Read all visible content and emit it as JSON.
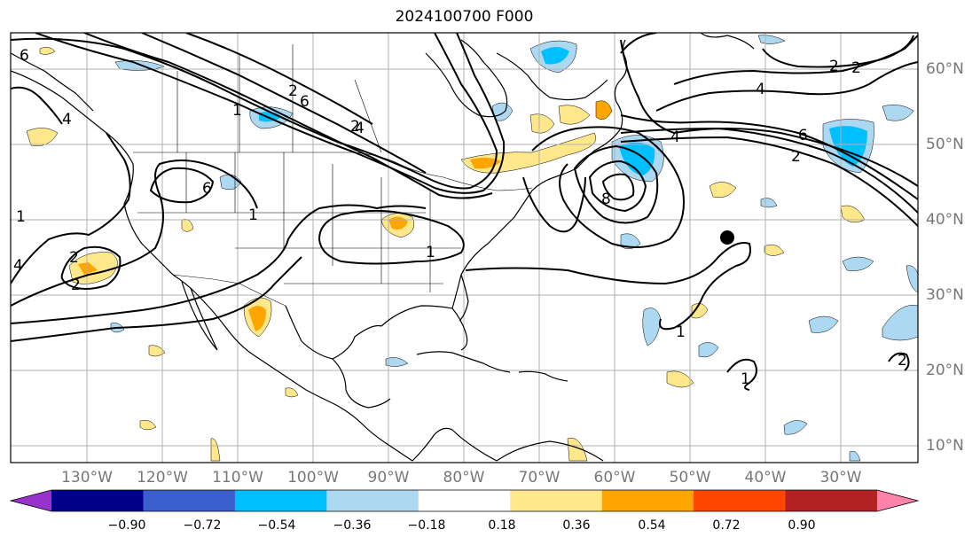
{
  "title": "2024100700 F000",
  "map": {
    "lon_labels": [
      "130°W",
      "120°W",
      "110°W",
      "100°W",
      "90°W",
      "80°W",
      "70°W",
      "60°W",
      "50°W",
      "40°W",
      "30°W"
    ],
    "lat_labels": [
      "60°N",
      "50°N",
      "40°N",
      "30°N",
      "20°N",
      "10°N"
    ],
    "contour_labels": [
      "1",
      "2",
      "4",
      "6",
      "2",
      "1",
      "1",
      "2",
      "4",
      "6",
      "1",
      "2",
      "4",
      "6",
      "8",
      "2",
      "4",
      "1",
      "2",
      "1",
      "2",
      "4",
      "6",
      "2"
    ],
    "colors": {
      "coastline": "#000000",
      "gridline": "#b0b0b0",
      "contour": "#000000",
      "tick_label": "#777777",
      "storm_marker": "#000000"
    }
  },
  "colorbar": {
    "tick_labels": [
      "−0.90",
      "−0.72",
      "−0.54",
      "−0.36",
      "−0.18",
      "0.18",
      "0.36",
      "0.54",
      "0.72",
      "0.90"
    ],
    "colors": [
      "#9932cc",
      "#00008b",
      "#3a5fcd",
      "#00bfff",
      "#add8f2",
      "#ffffff",
      "#ffe88c",
      "#ffa500",
      "#ff4500",
      "#b22222",
      "#ff82ab"
    ]
  }
}
